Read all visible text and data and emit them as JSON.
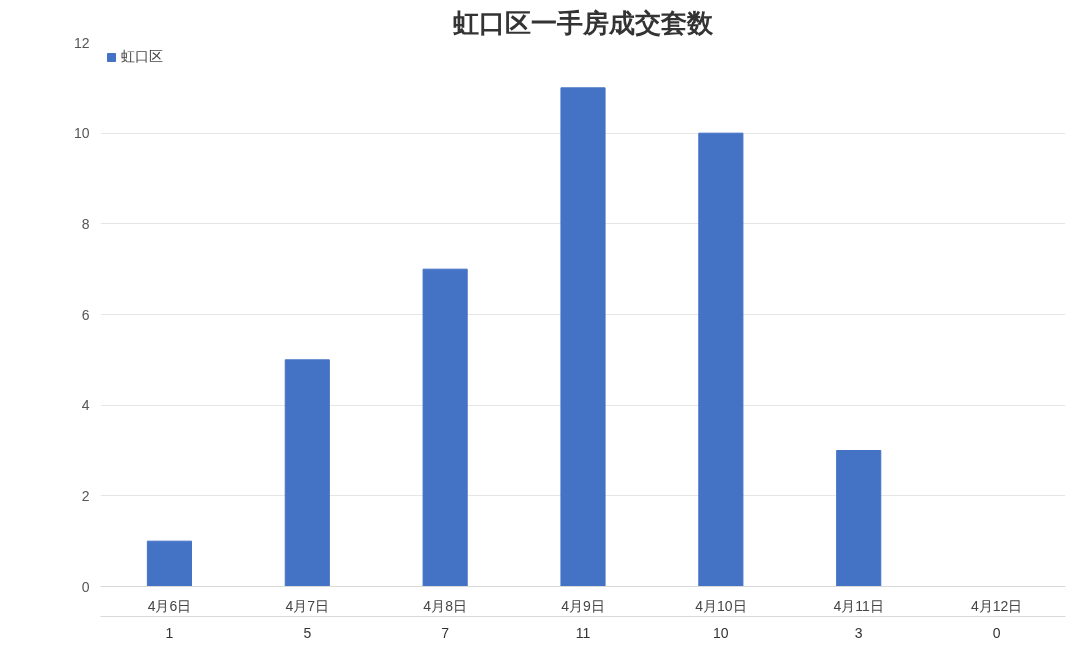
{
  "chart_data": {
    "type": "bar",
    "title": "虹口区一手房成交套数",
    "categories": [
      "4月6日",
      "4月7日",
      "4月8日",
      "4月9日",
      "4月10日",
      "4月11日",
      "4月12日"
    ],
    "series": [
      {
        "name": "虹口区",
        "color": "#4472c4",
        "values": [
          1,
          5,
          7,
          11,
          10,
          3,
          0
        ]
      }
    ],
    "ylim": [
      0,
      12
    ],
    "yticks": [
      0,
      2,
      4,
      6,
      8,
      10,
      12
    ],
    "grid": "y",
    "data_labels": true,
    "legend": "top left"
  }
}
